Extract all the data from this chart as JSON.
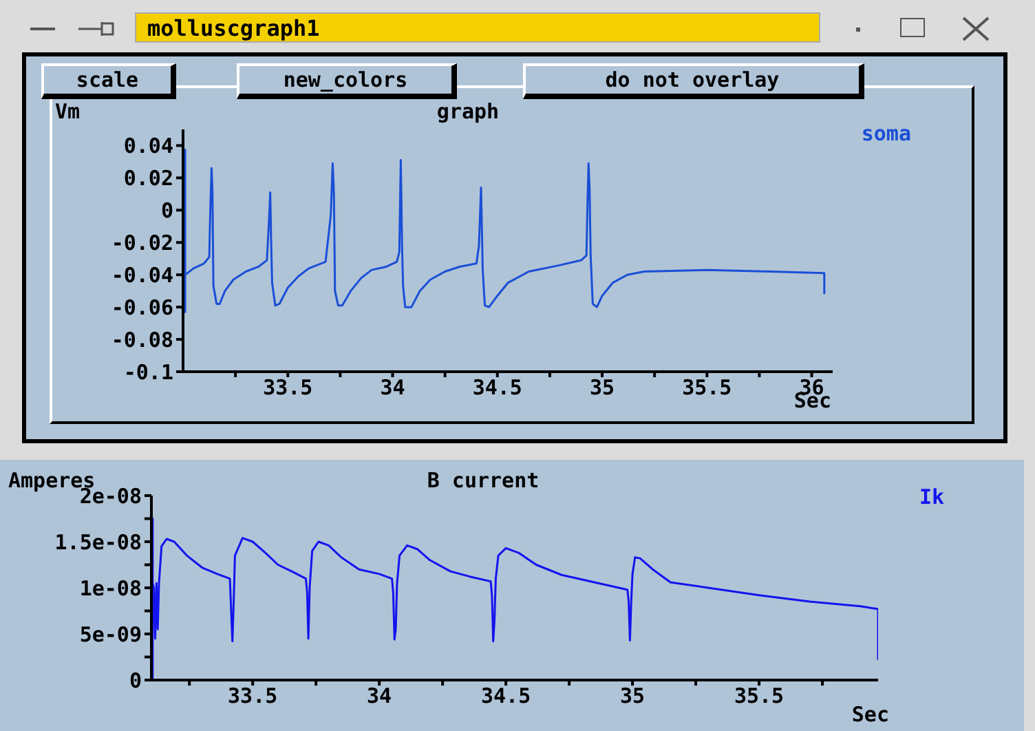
{
  "chart_data": [
    {
      "type": "line",
      "title": "graph",
      "ylabel": "Vm",
      "xlabel": "Sec",
      "legend": "top right",
      "marker": "none",
      "grid": false,
      "annotations": [
        "molluscgraph1",
        "scale",
        "new_colors",
        "do not overlay"
      ],
      "xlim": [
        33.0,
        36.1
      ],
      "xticks": [
        {
          "value": 33.25,
          "label": null
        },
        33.5,
        {
          "value": 33.75,
          "label": null
        },
        34,
        {
          "value": 34.25,
          "label": null
        },
        34.5,
        {
          "value": 34.75,
          "label": null
        },
        35,
        {
          "value": 35.25,
          "label": null
        },
        35.5,
        {
          "value": 35.75,
          "label": null
        },
        36
      ],
      "ylim": [
        -0.1,
        0.05
      ],
      "yticks": [
        -0.1,
        -0.08,
        -0.06,
        -0.04,
        -0.02,
        0,
        0.02,
        0.04
      ],
      "x": [
        33.01,
        33.01,
        33.01,
        33.05,
        33.1,
        33.125,
        33.13,
        33.136,
        33.14,
        33.145,
        33.16,
        33.175,
        33.2,
        33.24,
        33.3,
        33.36,
        33.4,
        33.41,
        33.416,
        33.42,
        33.425,
        33.44,
        33.46,
        33.5,
        33.55,
        33.6,
        33.68,
        33.705,
        33.714,
        33.72,
        33.725,
        33.74,
        33.76,
        33.8,
        33.85,
        33.9,
        33.97,
        34.02,
        34.032,
        34.039,
        34.045,
        34.05,
        34.06,
        34.09,
        34.13,
        34.18,
        34.25,
        34.32,
        34.4,
        34.412,
        34.422,
        34.43,
        34.44,
        34.46,
        34.5,
        34.55,
        34.65,
        34.8,
        34.9,
        34.925,
        34.93,
        34.935,
        34.94,
        34.945,
        34.955,
        34.975,
        35.0,
        35.05,
        35.12,
        35.2,
        35.5,
        35.8,
        36.06,
        36.06
      ],
      "series": [
        {
          "name": "soma",
          "color": "#1a4fd6",
          "values": [
            0.038,
            -0.063,
            -0.04,
            -0.036,
            -0.033,
            -0.029,
            0,
            0.026,
            0.013,
            -0.047,
            -0.058,
            -0.058,
            -0.05,
            -0.043,
            -0.038,
            -0.035,
            -0.031,
            -0.007,
            0.011,
            -0.017,
            -0.045,
            -0.059,
            -0.058,
            -0.048,
            -0.041,
            -0.036,
            -0.032,
            -0.003,
            0.029,
            0.01,
            -0.05,
            -0.059,
            -0.059,
            -0.05,
            -0.042,
            -0.037,
            -0.035,
            -0.032,
            -0.026,
            0.031,
            -0.022,
            -0.047,
            -0.06,
            -0.06,
            -0.05,
            -0.043,
            -0.038,
            -0.035,
            -0.033,
            -0.022,
            0.014,
            -0.037,
            -0.059,
            -0.06,
            -0.053,
            -0.045,
            -0.038,
            -0.034,
            -0.031,
            -0.028,
            0.004,
            0.029,
            0.013,
            -0.028,
            -0.058,
            -0.06,
            -0.053,
            -0.045,
            -0.04,
            -0.038,
            -0.037,
            -0.038,
            -0.039,
            -0.052
          ]
        }
      ]
    },
    {
      "type": "line",
      "title": "B current",
      "ylabel": "Amperes",
      "xlabel": "Sec",
      "legend": "top right",
      "marker": "none",
      "grid": false,
      "xlim": [
        33.1,
        35.97
      ],
      "xticks": [
        {
          "value": 33.25,
          "label": null
        },
        33.5,
        {
          "value": 33.75,
          "label": null
        },
        34,
        {
          "value": 34.25,
          "label": null
        },
        34.5,
        {
          "value": 34.75,
          "label": null
        },
        35,
        {
          "value": 35.25,
          "label": null
        },
        35.5,
        {
          "value": 35.75,
          "label": null
        }
      ],
      "ylim": [
        0,
        2e-08
      ],
      "yticks": [
        0,
        {
          "value": 2.5e-09,
          "label": null
        },
        {
          "value": 5e-09,
          "label": "5e-09"
        },
        {
          "value": 7.5e-09,
          "label": null
        },
        {
          "value": 1e-08,
          "label": "1e-08"
        },
        {
          "value": 1.25e-08,
          "label": null
        },
        {
          "value": 1.5e-08,
          "label": "1.5e-08"
        },
        {
          "value": 1.75e-08,
          "label": null
        },
        {
          "value": 2e-08,
          "label": "2e-08"
        }
      ],
      "x": [
        33.105,
        33.105,
        33.105,
        33.11,
        33.115,
        33.12,
        33.125,
        33.13,
        33.14,
        33.16,
        33.19,
        33.24,
        33.3,
        33.36,
        33.41,
        33.415,
        33.42,
        33.425,
        33.43,
        33.46,
        33.5,
        33.55,
        33.6,
        33.66,
        33.71,
        33.715,
        33.72,
        33.725,
        33.735,
        33.76,
        33.8,
        33.85,
        33.92,
        34.0,
        34.05,
        34.055,
        34.06,
        34.065,
        34.07,
        34.08,
        34.11,
        34.15,
        34.2,
        34.28,
        34.36,
        34.44,
        34.445,
        34.45,
        34.455,
        34.46,
        34.47,
        34.5,
        34.55,
        34.62,
        34.72,
        34.85,
        34.98,
        34.985,
        34.99,
        34.995,
        35.0,
        35.01,
        35.03,
        35.08,
        35.15,
        35.3,
        35.5,
        35.7,
        35.9,
        35.97,
        35.97
      ],
      "series": [
        {
          "name": "Ik",
          "color": "#1414ee",
          "values": [
            0,
            1.75e-08,
            1.05e-08,
            1e-08,
            4.5e-09,
            1.05e-08,
            5.5e-09,
            1.05e-08,
            1.45e-08,
            1.53e-08,
            1.5e-08,
            1.35e-08,
            1.22e-08,
            1.15e-08,
            1.1e-08,
            7.5e-09,
            4.2e-09,
            8.5e-09,
            1.35e-08,
            1.54e-08,
            1.5e-08,
            1.38e-08,
            1.25e-08,
            1.17e-08,
            1.1e-08,
            9.5e-09,
            4.5e-09,
            1e-08,
            1.4e-08,
            1.5e-08,
            1.46e-08,
            1.33e-08,
            1.2e-08,
            1.15e-08,
            1.1e-08,
            9.5e-09,
            4.4e-09,
            5.5e-09,
            1.04e-08,
            1.35e-08,
            1.46e-08,
            1.42e-08,
            1.3e-08,
            1.18e-08,
            1.12e-08,
            1.07e-08,
            9.2e-09,
            4.2e-09,
            6.5e-09,
            1.1e-08,
            1.35e-08,
            1.43e-08,
            1.38e-08,
            1.25e-08,
            1.14e-08,
            1.06e-08,
            9.8e-09,
            8.5e-09,
            4.3e-09,
            8.5e-09,
            1.15e-08,
            1.33e-08,
            1.32e-08,
            1.2e-08,
            1.06e-08,
            1e-08,
            9.2e-09,
            8.5e-09,
            8e-09,
            7.7e-09,
            2.2e-09
          ]
        }
      ]
    }
  ]
}
